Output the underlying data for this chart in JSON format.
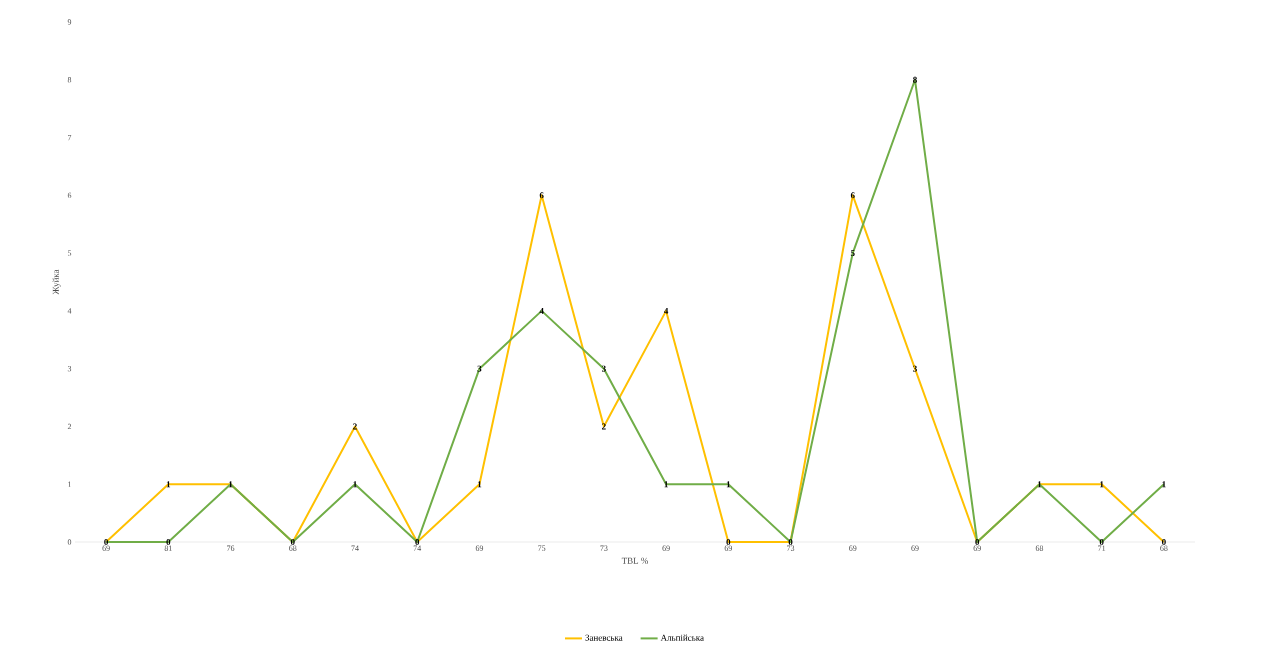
{
  "chart_data": {
    "type": "line",
    "xlabel": "TBL %",
    "ylabel": "Жуйка",
    "categories": [
      "69",
      "81",
      "76",
      "68",
      "74",
      "74",
      "69",
      "75",
      "73",
      "69",
      "69",
      "73",
      "69",
      "69",
      "69",
      "68",
      "71",
      "68"
    ],
    "series": [
      {
        "name": "Заневська",
        "color": "#ffc000",
        "values": [
          0,
          1,
          1,
          0,
          2,
          0,
          1,
          6,
          2,
          4,
          0,
          0,
          6,
          3,
          0,
          1,
          1,
          0
        ],
        "value_labels": [
          "0",
          "1",
          "1",
          "0",
          "2",
          "0",
          "1",
          "6",
          "2",
          "4",
          "0",
          "0",
          "6",
          "3",
          "0",
          "1",
          "1",
          "0"
        ]
      },
      {
        "name": "Альпійська",
        "color": "#70ad47",
        "values": [
          0,
          0,
          1,
          0,
          1,
          0,
          3,
          4,
          3,
          1,
          1,
          0,
          5,
          8,
          0,
          1,
          0,
          1
        ],
        "value_labels": [
          null,
          "0",
          null,
          null,
          "1",
          null,
          "3",
          "4",
          "3",
          "1",
          "1",
          null,
          "5",
          "8",
          null,
          null,
          "0",
          "1"
        ]
      }
    ],
    "ylim": [
      0,
      9
    ],
    "yticks": [
      0,
      1,
      2,
      3,
      4,
      5,
      6,
      7,
      8,
      9
    ],
    "grid": false,
    "legend": "bottom",
    "marker": "none",
    "line_style": "solid"
  }
}
